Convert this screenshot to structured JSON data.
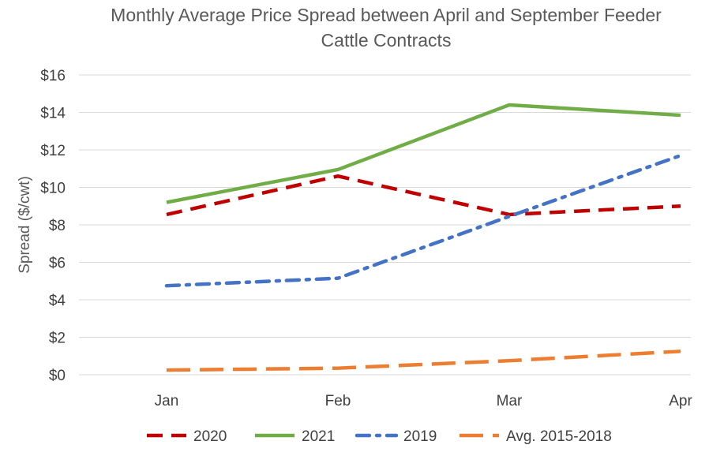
{
  "chart_data": {
    "type": "line",
    "title": "Monthly Average Price Spread between April and September Feeder Cattle Contracts",
    "title_lines": [
      "Monthly Average Price Spread between April and September Feeder",
      "Cattle Contracts"
    ],
    "xlabel": "",
    "ylabel": "Spread ($/cwt)",
    "categories": [
      "Jan",
      "Feb",
      "Mar",
      "Apr"
    ],
    "ylim": [
      0,
      16
    ],
    "y_ticks": [
      0,
      2,
      4,
      6,
      8,
      10,
      12,
      14,
      16
    ],
    "y_tick_labels": [
      "$0",
      "$2",
      "$4",
      "$6",
      "$8",
      "$10",
      "$12",
      "$14",
      "$16"
    ],
    "grid": true,
    "legend_position": "bottom",
    "series": [
      {
        "name": "2020",
        "values": [
          8.55,
          10.6,
          8.55,
          9.0
        ],
        "color": "#C00000",
        "style": "dash"
      },
      {
        "name": "2021",
        "values": [
          9.2,
          10.95,
          14.4,
          13.85
        ],
        "color": "#70AD47",
        "style": "solid"
      },
      {
        "name": "2019",
        "values": [
          4.75,
          5.15,
          8.45,
          11.7
        ],
        "color": "#4472C4",
        "style": "dashdot"
      },
      {
        "name": "Avg. 2015-2018",
        "values": [
          0.25,
          0.35,
          0.75,
          1.25
        ],
        "color": "#ED7D31",
        "style": "longdash"
      }
    ]
  }
}
